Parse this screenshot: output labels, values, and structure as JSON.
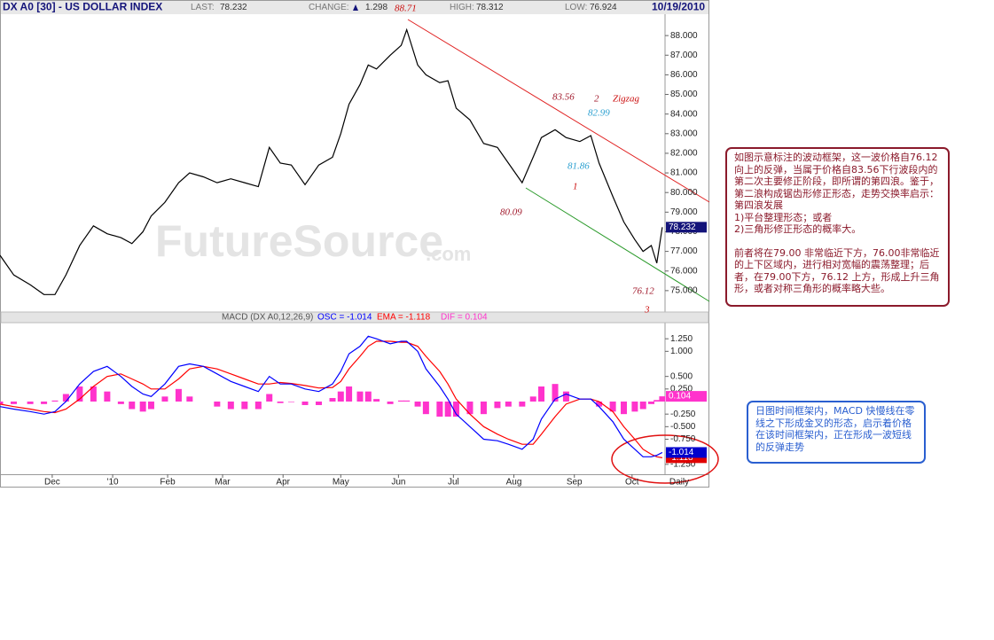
{
  "header": {
    "symbol": "DX A0 [30] - US DOLLAR INDEX",
    "last_label": "LAST:",
    "last": 78.232,
    "change_label": "CHANGE:",
    "change": 1.298,
    "high_label": "HIGH:",
    "high": 78.312,
    "low_label": "LOW:",
    "low": 76.924,
    "date": "10/19/2010"
  },
  "chart_data": [
    {
      "type": "line",
      "watermark": "FutureSource",
      "watermark_suffix": ".com",
      "x": [
        0,
        5,
        11,
        16,
        20,
        24,
        29,
        34,
        39,
        44,
        48,
        52,
        55,
        60,
        65,
        69,
        74,
        79,
        84,
        89,
        94,
        98,
        102,
        106,
        111,
        116,
        121,
        124,
        127,
        131,
        134,
        137,
        142,
        146,
        148,
        152,
        155,
        160,
        163,
        166,
        171,
        176,
        181,
        185,
        190,
        194,
        197,
        202,
        206,
        211,
        215,
        218,
        223,
        227,
        231,
        234,
        237,
        239,
        241
      ],
      "values": [
        76.8,
        75.8,
        75.3,
        74.8,
        74.8,
        75.8,
        77.3,
        78.3,
        77.9,
        77.7,
        77.4,
        78.0,
        78.8,
        79.5,
        80.5,
        81.0,
        80.8,
        80.5,
        80.7,
        80.5,
        80.3,
        82.3,
        81.5,
        81.4,
        80.4,
        81.4,
        81.8,
        83.0,
        84.5,
        85.5,
        86.5,
        86.3,
        87.0,
        87.5,
        88.3,
        86.5,
        86.0,
        85.6,
        85.7,
        84.3,
        83.7,
        82.5,
        82.3,
        81.5,
        80.5,
        81.8,
        82.8,
        83.2,
        82.8,
        82.6,
        82.9,
        81.5,
        79.8,
        78.5,
        77.6,
        77.0,
        77.3,
        76.4,
        78.232
      ],
      "color": "#000000",
      "box_color": "#14147a",
      "xlim": [
        0,
        242
      ],
      "ylim": [
        74,
        89
      ],
      "yticks": [
        {
          "value": 75,
          "label": "75.000"
        },
        {
          "value": 76,
          "label": "76.000"
        },
        {
          "value": 77,
          "label": "77.000"
        },
        {
          "value": 78,
          "label": "78.000"
        },
        {
          "value": 79,
          "label": "79.000"
        },
        {
          "value": 80,
          "label": "80.000"
        },
        {
          "value": 81,
          "label": "81.000"
        },
        {
          "value": 82,
          "label": "82.000"
        },
        {
          "value": 83,
          "label": "83.000"
        },
        {
          "value": 84,
          "label": "84.000"
        },
        {
          "value": 85,
          "label": "85.000"
        },
        {
          "value": 86,
          "label": "86.000"
        },
        {
          "value": 87,
          "label": "87.000"
        },
        {
          "value": 88,
          "label": "88.000"
        }
      ],
      "annotations": [
        {
          "text": "88.71",
          "color": "#cc1111"
        },
        {
          "text": "83.56",
          "color": "#a0182a"
        },
        {
          "text": "2",
          "color": "#a0182a"
        },
        {
          "text": "Zigzag",
          "color": "#cc1111"
        },
        {
          "text": "82.99",
          "color": "#2a9fd0"
        },
        {
          "text": "81.86",
          "color": "#2a9fd0"
        },
        {
          "text": "1",
          "color": "#cc1111"
        },
        {
          "text": "80.09",
          "color": "#a0182a"
        },
        {
          "text": "76.12",
          "color": "#a0182a"
        },
        {
          "text": "3",
          "color": "#cc1111"
        }
      ]
    },
    {
      "type": "line",
      "title": "MACD (DX A0,12,26,9)",
      "legend": [
        "OSC = -1.014",
        "EMA = -1.118",
        "DIF = 0.104"
      ],
      "period": "Daily",
      "x": [
        0,
        5,
        11,
        16,
        20,
        24,
        29,
        34,
        39,
        44,
        48,
        52,
        55,
        60,
        65,
        69,
        74,
        79,
        84,
        89,
        94,
        98,
        102,
        106,
        111,
        116,
        121,
        124,
        127,
        131,
        134,
        137,
        142,
        146,
        148,
        152,
        155,
        160,
        163,
        166,
        171,
        176,
        181,
        185,
        190,
        194,
        197,
        202,
        206,
        211,
        215,
        218,
        223,
        227,
        231,
        234,
        237,
        239,
        241
      ],
      "series": [
        {
          "kind": "bar",
          "color": "#ff33cc",
          "box_color": "#ff33cc",
          "values": [
            -0.05,
            -0.05,
            -0.05,
            -0.05,
            0.02,
            0.15,
            0.3,
            0.3,
            0.2,
            -0.05,
            -0.15,
            -0.2,
            -0.15,
            0.1,
            0.25,
            0.1,
            0.0,
            -0.1,
            -0.15,
            -0.15,
            -0.15,
            0.15,
            -0.03,
            -0.01,
            -0.07,
            -0.07,
            0.07,
            0.2,
            0.3,
            0.2,
            0.2,
            0.05,
            -0.05,
            0.02,
            0.02,
            -0.1,
            -0.25,
            -0.3,
            -0.3,
            -0.3,
            -0.25,
            -0.25,
            -0.13,
            -0.1,
            -0.1,
            0.1,
            0.3,
            0.35,
            0.2,
            0.0,
            0.0,
            -0.1,
            -0.2,
            -0.25,
            -0.2,
            -0.15,
            -0.05,
            0.03,
            0.104
          ]
        },
        {
          "kind": "line",
          "color": "#ff0000",
          "box_color": "#e00000",
          "values": [
            -0.05,
            -0.1,
            -0.15,
            -0.2,
            -0.22,
            -0.15,
            0.05,
            0.3,
            0.5,
            0.55,
            0.45,
            0.35,
            0.25,
            0.25,
            0.45,
            0.65,
            0.7,
            0.65,
            0.55,
            0.45,
            0.35,
            0.35,
            0.38,
            0.36,
            0.32,
            0.27,
            0.28,
            0.4,
            0.65,
            0.9,
            1.1,
            1.2,
            1.2,
            1.18,
            1.18,
            1.1,
            0.9,
            0.6,
            0.35,
            0.05,
            -0.25,
            -0.5,
            -0.65,
            -0.75,
            -0.85,
            -0.85,
            -0.65,
            -0.3,
            -0.05,
            0.05,
            0.05,
            0.0,
            -0.2,
            -0.5,
            -0.75,
            -0.95,
            -1.05,
            -1.1,
            -1.118
          ]
        },
        {
          "kind": "line",
          "color": "#0000ff",
          "box_color": "#0000cc",
          "values": [
            -0.1,
            -0.15,
            -0.2,
            -0.25,
            -0.2,
            0.0,
            0.35,
            0.6,
            0.7,
            0.5,
            0.3,
            0.15,
            0.1,
            0.35,
            0.7,
            0.75,
            0.7,
            0.55,
            0.4,
            0.3,
            0.2,
            0.5,
            0.35,
            0.35,
            0.25,
            0.2,
            0.35,
            0.6,
            0.95,
            1.1,
            1.3,
            1.25,
            1.15,
            1.2,
            1.2,
            1.0,
            0.65,
            0.3,
            0.05,
            -0.25,
            -0.5,
            -0.75,
            -0.78,
            -0.85,
            -0.95,
            -0.75,
            -0.35,
            0.05,
            0.15,
            0.05,
            0.05,
            -0.1,
            -0.4,
            -0.75,
            -0.95,
            -1.1,
            -1.1,
            -1.07,
            -1.014
          ]
        }
      ],
      "xlim": [
        0,
        242
      ],
      "ylim": [
        -1.5,
        1.5
      ],
      "xticks": [
        {
          "value": 19,
          "label": "Dec"
        },
        {
          "value": 41,
          "label": "'10"
        },
        {
          "value": 61,
          "label": "Feb"
        },
        {
          "value": 81,
          "label": "Mar"
        },
        {
          "value": 103,
          "label": "Apr"
        },
        {
          "value": 124,
          "label": "May"
        },
        {
          "value": 145,
          "label": "Jun"
        },
        {
          "value": 165,
          "label": "Jul"
        },
        {
          "value": 187,
          "label": "Aug"
        },
        {
          "value": 209,
          "label": "Sep"
        },
        {
          "value": 230,
          "label": "Oct"
        }
      ],
      "yticks": [
        {
          "value": 1.25,
          "label": "1.250"
        },
        {
          "value": 1,
          "label": "1.000"
        },
        {
          "value": 0.5,
          "label": "0.500"
        },
        {
          "value": 0.25,
          "label": "0.250"
        },
        {
          "value": -0.25,
          "label": "-0.250"
        },
        {
          "value": -0.5,
          "label": "-0.500"
        },
        {
          "value": -0.75,
          "label": "-0.750"
        },
        {
          "value": -1.25,
          "label": "-1.250"
        }
      ]
    }
  ],
  "notes": [
    {
      "color": "#8b1a2b",
      "lines": [
        "如图示意标注的波动框架，这一波价格自76.12向上的反弹，当属于价格自83.56下行波段内的第二次主要修正阶段，即所谓的第四浪。鉴于，第二浪构成锯齿形修正形态，走势交换率启示：第四浪发展",
        "1)平台整理形态；或者",
        "2)三角形修正形态的概率大。",
        "前者将在79.00 非常临近下方，76.00非常临近的上下区域内，进行相对宽幅的震荡整理；后者，在79.00下方，76.12 上方，形成上升三角形，或者对称三角形的概率略大些。"
      ]
    },
    {
      "color": "#2a5fd0",
      "lines": [
        "日图时间框架内，MACD 快慢线在零线之下形成金叉的形态，启示着价格在该时间框架内，正在形成一波短线的反弹走势"
      ]
    }
  ]
}
